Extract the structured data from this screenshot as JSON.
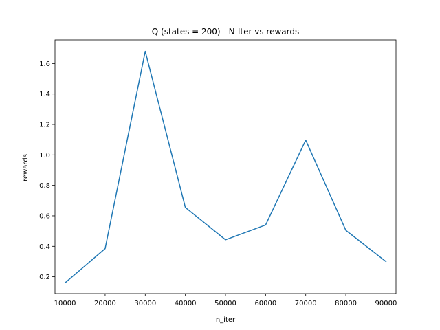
{
  "chart_data": {
    "type": "line",
    "title": "Q (states = 200) - N-Iter vs rewards",
    "xlabel": "n_iter",
    "ylabel": "rewards",
    "x": [
      10000,
      20000,
      30000,
      40000,
      50000,
      60000,
      70000,
      80000,
      90000
    ],
    "series": [
      {
        "values": [
          0.16,
          0.385,
          1.68,
          0.655,
          0.443,
          0.54,
          1.097,
          0.505,
          0.3
        ],
        "color": "#1f77b4"
      }
    ],
    "xlim": [
      7500,
      92500
    ],
    "ylim": [
      0.09,
      1.755
    ],
    "xticks": [
      10000,
      20000,
      30000,
      40000,
      50000,
      60000,
      70000,
      80000,
      90000
    ],
    "yticks": [
      0.2,
      0.4,
      0.6,
      0.8,
      1.0,
      1.2,
      1.4,
      1.6
    ],
    "ytick_labels": [
      "0.2",
      "0.4",
      "0.6",
      "0.8",
      "1.0",
      "1.2",
      "1.4",
      "1.6"
    ],
    "grid": false,
    "legend": "none"
  }
}
